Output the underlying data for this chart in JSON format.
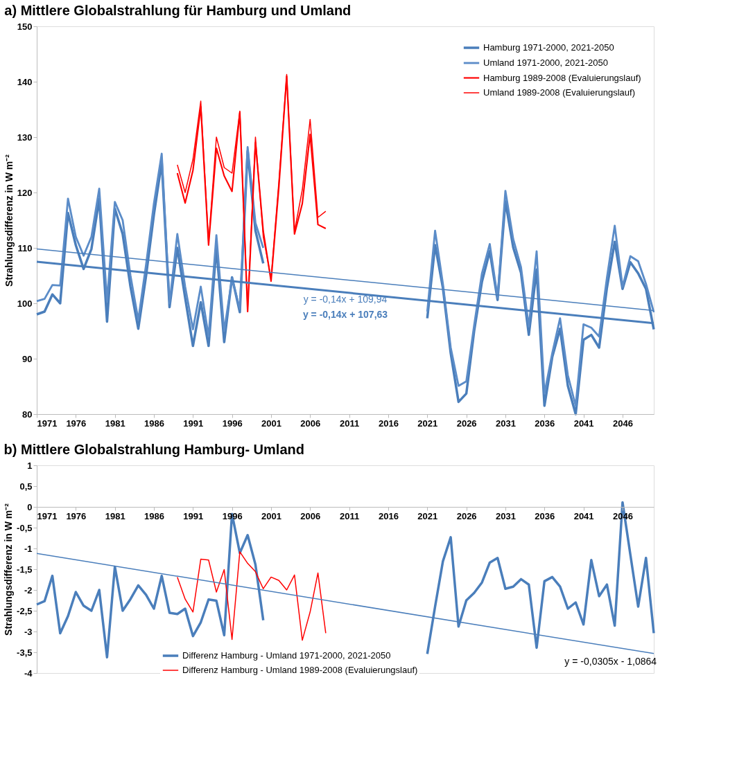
{
  "chart_data": [
    {
      "type": "line",
      "title": "a) Mittlere Globalstrahlung für Hamburg und Umland",
      "ylabel": "Strahlungsdifferenz in W m⁻²",
      "x": [
        1971,
        1972,
        1973,
        1974,
        1975,
        1976,
        1977,
        1978,
        1979,
        1980,
        1981,
        1982,
        1983,
        1984,
        1985,
        1986,
        1987,
        1988,
        1989,
        1990,
        1991,
        1992,
        1993,
        1994,
        1995,
        1996,
        1997,
        1998,
        1999,
        2000,
        2001,
        2002,
        2003,
        2004,
        2005,
        2006,
        2007,
        2008,
        2009,
        2010,
        2011,
        2012,
        2013,
        2014,
        2015,
        2016,
        2017,
        2018,
        2019,
        2020,
        2021,
        2022,
        2023,
        2024,
        2025,
        2026,
        2027,
        2028,
        2029,
        2030,
        2031,
        2032,
        2033,
        2034,
        2035,
        2036,
        2037,
        2038,
        2039,
        2040,
        2041,
        2042,
        2043,
        2044,
        2045,
        2046,
        2047,
        2048,
        2049,
        2050
      ],
      "series": [
        {
          "name": "Hamburg 1971-2000, 2021-2050",
          "color": "#4a7ebb",
          "values": [
            98.0,
            98.5,
            101.6,
            100.0,
            116.3,
            110.5,
            106.2,
            109.8,
            118.8,
            96.7,
            117.1,
            112.5,
            103,
            95.4,
            105,
            116,
            125.5,
            99.3,
            110,
            101,
            92.3,
            100.2,
            92.3,
            110.1,
            93.0,
            104.7,
            98.4,
            127.5,
            113.1,
            107.2,
            null,
            null,
            null,
            null,
            null,
            null,
            null,
            null,
            null,
            null,
            null,
            null,
            null,
            null,
            null,
            null,
            null,
            null,
            null,
            null,
            97.3,
            110.5,
            102.8,
            91,
            82.2,
            83.7,
            95,
            103.9,
            109.4,
            100.6,
            118.4,
            110.1,
            105.5,
            94.3,
            106.1,
            81.5,
            90.3,
            95.4,
            85.1,
            80,
            93.4,
            94.3,
            92,
            102.8,
            111.1,
            102.6,
            107.4,
            105.4,
            102.6,
            95.3
          ]
        },
        {
          "name": "Umland 1971-2000, 2021-2050",
          "color": "#5b8cc8",
          "values": [
            100.4,
            100.8,
            103.3,
            103.2,
            118.9,
            112,
            108.6,
            112,
            120.7,
            100.5,
            118.3,
            115,
            105,
            97,
            107,
            118,
            127,
            100,
            112.5,
            103,
            95.3,
            103,
            94,
            112.3,
            95,
            104.5,
            99,
            128.2,
            114.5,
            110,
            null,
            null,
            null,
            null,
            null,
            null,
            null,
            null,
            null,
            null,
            null,
            null,
            null,
            null,
            null,
            null,
            null,
            null,
            null,
            null,
            98.5,
            113.1,
            103.5,
            92,
            85.1,
            85.9,
            96,
            105.4,
            110.7,
            101,
            120.3,
            111.6,
            106.5,
            95.8,
            109.4,
            83.7,
            91,
            97.3,
            87,
            81.5,
            96.2,
            95.6,
            94,
            104.6,
            114,
            103,
            108.5,
            107.6,
            103.5,
            98.4
          ]
        },
        {
          "name": "Hamburg 1989-2008 (Evaluierungslauf)",
          "color": "#ff0000",
          "x": [
            1989,
            1990,
            1991,
            1992,
            1993,
            1994,
            1995,
            1996,
            1997,
            1998,
            1999,
            2000,
            2001,
            2002,
            2003,
            2004,
            2005,
            2006,
            2007,
            2008
          ],
          "values": [
            123.5,
            118.1,
            124,
            135.5,
            110.5,
            128,
            123,
            120.2,
            134.5,
            98.5,
            129,
            113,
            104,
            121,
            141,
            112.5,
            118,
            130.5,
            114.2,
            113.5
          ]
        },
        {
          "name": "Umland 1989-2008 (Evaluierungslauf)",
          "color": "#ff0000",
          "x": [
            1989,
            1990,
            1991,
            1992,
            1993,
            1994,
            1995,
            1996,
            1997,
            1998,
            1999,
            2000,
            2001,
            2002,
            2003,
            2004,
            2005,
            2006,
            2007,
            2008
          ],
          "values": [
            125,
            120,
            126,
            136.5,
            111,
            130,
            124.5,
            123.5,
            134.7,
            99,
            130,
            112,
            104.5,
            122,
            141.3,
            113,
            120.5,
            133.2,
            115.5,
            116.6
          ]
        },
        {
          "type": "line",
          "color": "#4a7ebb",
          "x": [
            1971,
            2050
          ],
          "values": [
            109.8,
            98.7
          ]
        },
        {
          "type": "line",
          "color": "#4a7ebb",
          "x": [
            1971,
            2050
          ],
          "values": [
            107.5,
            96.4
          ]
        }
      ],
      "annotations": [
        "y = -0,14x + 109,94",
        "y = -0,14x + 107,63"
      ],
      "xlim": [
        1971,
        2050
      ],
      "xticks": [
        1971,
        1976,
        1981,
        1986,
        1991,
        1996,
        2001,
        2006,
        2011,
        2016,
        2021,
        2026,
        2031,
        2036,
        2041,
        2046
      ],
      "ylim": [
        80,
        150
      ],
      "yticks": [
        80,
        90,
        100,
        110,
        120,
        130,
        140,
        150
      ],
      "grid": false,
      "legend": "top right",
      "marker": "none",
      "line_style": "solid"
    },
    {
      "type": "line",
      "title": "b) Mittlere Globalstrahlung Hamburg- Umland",
      "ylabel": "Strahlungsdifferenz in W m⁻²",
      "x": [
        1971,
        1972,
        1973,
        1974,
        1975,
        1976,
        1977,
        1978,
        1979,
        1980,
        1981,
        1982,
        1983,
        1984,
        1985,
        1986,
        1987,
        1988,
        1989,
        1990,
        1991,
        1992,
        1993,
        1994,
        1995,
        1996,
        1997,
        1998,
        1999,
        2000,
        2001,
        2002,
        2003,
        2004,
        2005,
        2006,
        2007,
        2008,
        2009,
        2010,
        2011,
        2012,
        2013,
        2014,
        2015,
        2016,
        2017,
        2018,
        2019,
        2020,
        2021,
        2022,
        2023,
        2024,
        2025,
        2026,
        2027,
        2028,
        2029,
        2030,
        2031,
        2032,
        2033,
        2034,
        2035,
        2036,
        2037,
        2038,
        2039,
        2040,
        2041,
        2042,
        2043,
        2044,
        2045,
        2046,
        2047,
        2048,
        2049,
        2050
      ],
      "series": [
        {
          "name": "Differenz Hamburg - Umland 1971-2000, 2021-2050",
          "color": "#4a7ebb",
          "values": [
            -2.35,
            -2.27,
            -1.66,
            -3.04,
            -2.63,
            -2.05,
            -2.38,
            -2.5,
            -2.0,
            -3.62,
            -1.44,
            -2.5,
            -2.22,
            -1.89,
            -2.12,
            -2.45,
            -1.66,
            -2.55,
            -2.58,
            -2.45,
            -3.11,
            -2.78,
            -2.23,
            -2.26,
            -3.09,
            -0.17,
            -1.11,
            -0.68,
            -1.39,
            -2.73,
            null,
            null,
            null,
            null,
            null,
            null,
            null,
            null,
            null,
            null,
            null,
            null,
            null,
            null,
            null,
            null,
            null,
            null,
            null,
            null,
            -3.54,
            -2.4,
            -1.31,
            -0.73,
            -2.88,
            -2.25,
            -2.07,
            -1.82,
            -1.34,
            -1.23,
            -1.97,
            -1.92,
            -1.74,
            -1.87,
            -3.39,
            -1.79,
            -1.69,
            -1.92,
            -2.45,
            -2.3,
            -2.83,
            -1.28,
            -2.15,
            -1.87,
            -2.86,
            0.11,
            -1.15,
            -2.4,
            -1.23,
            -3.04
          ]
        },
        {
          "name": "Differenz Hamburg - Umland 1989-2008 (Evaluierungslauf)",
          "color": "#ff0000",
          "x": [
            1989,
            1990,
            1991,
            1992,
            1993,
            1994,
            1995,
            1996,
            1997,
            1998,
            1999,
            2000,
            2001,
            2002,
            2003,
            2004,
            2005,
            2006,
            2007,
            2008
          ],
          "values": [
            -1.69,
            -2.22,
            -2.53,
            -1.26,
            -1.28,
            -2.05,
            -1.51,
            -3.19,
            -1.08,
            -1.36,
            -1.56,
            -1.97,
            -1.69,
            -1.77,
            -2.0,
            -1.64,
            -3.21,
            -2.53,
            -1.59,
            -3.04
          ]
        },
        {
          "type": "line",
          "color": "#4a7ebb",
          "x": [
            1971,
            2050
          ],
          "values": [
            -1.12,
            -3.53
          ]
        }
      ],
      "annotations": [
        "y = -0,0305x - 1,0864"
      ],
      "xlim": [
        1971,
        2050
      ],
      "xticks": [
        1971,
        1976,
        1981,
        1986,
        1991,
        1996,
        2001,
        2006,
        2011,
        2016,
        2021,
        2026,
        2031,
        2036,
        2041,
        2046
      ],
      "ylim": [
        -4,
        1
      ],
      "yticks": [
        -4,
        {
          "value": -3.5,
          "label": "-3,5"
        },
        -3,
        {
          "value": -2.5,
          "label": "-2,5"
        },
        -2,
        {
          "value": -1.5,
          "label": "-1,5"
        },
        -1,
        {
          "value": -0.5,
          "label": "-0,5"
        },
        0,
        {
          "value": 0.5,
          "label": "0,5"
        },
        1
      ],
      "grid": false,
      "legend": "bottom",
      "marker": "none",
      "line_style": "solid"
    }
  ]
}
